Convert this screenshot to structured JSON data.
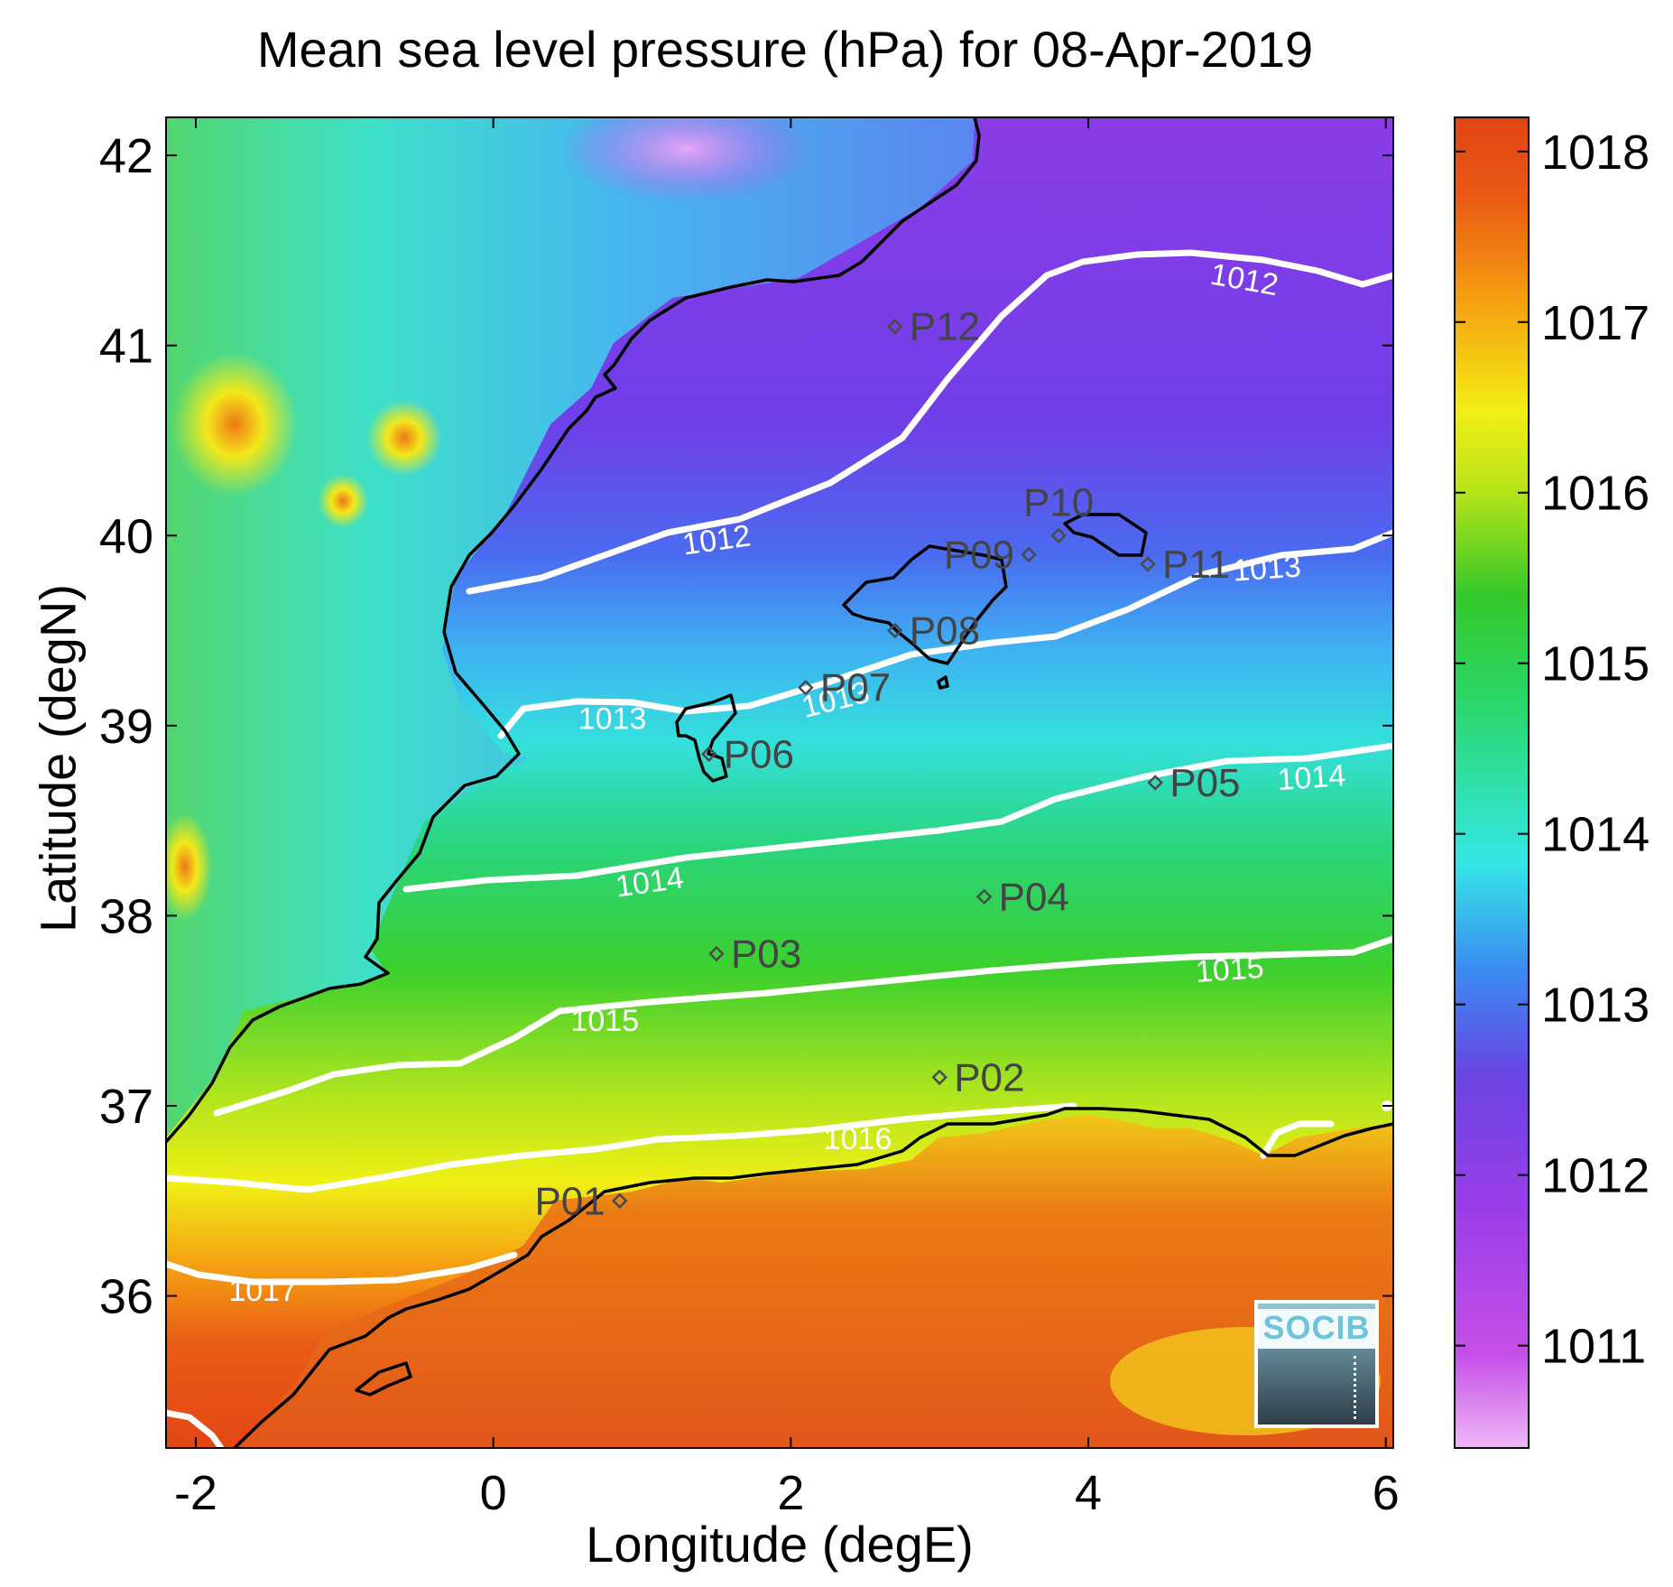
{
  "title": "Mean sea level pressure (hPa) for 08-Apr-2019",
  "xlabel": "Longitude (degE)",
  "ylabel": "Latitude (degN)",
  "logo_text": "SOCIB",
  "map": {
    "lon_range": [
      -2.2,
      6.05
    ],
    "lat_range": [
      35.2,
      42.2
    ],
    "x_ticks": [
      "-2",
      "0",
      "2",
      "4",
      "6"
    ],
    "y_ticks": [
      "36",
      "37",
      "38",
      "39",
      "40",
      "41",
      "42"
    ],
    "colormap": "jet-like (purple to red)"
  },
  "colorbar": {
    "range": [
      1010.4,
      1018.2
    ],
    "ticks": [
      "1011",
      "1012",
      "1013",
      "1014",
      "1015",
      "1016",
      "1017",
      "1018"
    ]
  },
  "contour_labels": [
    {
      "text": "1012",
      "lon": 1.5,
      "lat": 39.98,
      "rot": -8
    },
    {
      "text": "1012",
      "lon": 5.05,
      "lat": 41.35,
      "rot": 10
    },
    {
      "text": "1013",
      "lon": 0.8,
      "lat": 39.04,
      "rot": 0
    },
    {
      "text": "1013",
      "lon": 2.3,
      "lat": 39.14,
      "rot": -14
    },
    {
      "text": "1013",
      "lon": 5.2,
      "lat": 39.83,
      "rot": -4
    },
    {
      "text": "1014",
      "lon": 1.05,
      "lat": 38.18,
      "rot": -8
    },
    {
      "text": "1014",
      "lon": 5.5,
      "lat": 38.73,
      "rot": -4
    },
    {
      "text": "1015",
      "lon": 0.75,
      "lat": 37.45,
      "rot": 0
    },
    {
      "text": "1015",
      "lon": 4.95,
      "lat": 37.72,
      "rot": -4
    },
    {
      "text": "1016",
      "lon": 2.45,
      "lat": 36.83,
      "rot": 0
    },
    {
      "text": "1017",
      "lon": -1.55,
      "lat": 36.03,
      "rot": 0
    }
  ],
  "stations": [
    {
      "name": "P01",
      "lon": 0.85,
      "lat": 36.5,
      "label_side": "left"
    },
    {
      "name": "P02",
      "lon": 3.0,
      "lat": 37.15,
      "label_side": "right"
    },
    {
      "name": "P03",
      "lon": 1.5,
      "lat": 37.8,
      "label_side": "right"
    },
    {
      "name": "P04",
      "lon": 3.3,
      "lat": 38.1,
      "label_side": "right"
    },
    {
      "name": "P05",
      "lon": 4.45,
      "lat": 38.7,
      "label_side": "right"
    },
    {
      "name": "P06",
      "lon": 1.45,
      "lat": 38.85,
      "label_side": "right"
    },
    {
      "name": "P07",
      "lon": 2.1,
      "lat": 39.2,
      "label_side": "right"
    },
    {
      "name": "P08",
      "lon": 2.7,
      "lat": 39.5,
      "label_side": "right"
    },
    {
      "name": "P09",
      "lon": 3.6,
      "lat": 39.9,
      "label_side": "left"
    },
    {
      "name": "P10",
      "lon": 3.8,
      "lat": 40.0,
      "label_side": "above"
    },
    {
      "name": "P11",
      "lon": 4.4,
      "lat": 39.85,
      "label_side": "right"
    },
    {
      "name": "P12",
      "lon": 2.7,
      "lat": 41.1,
      "label_side": "right"
    }
  ]
}
